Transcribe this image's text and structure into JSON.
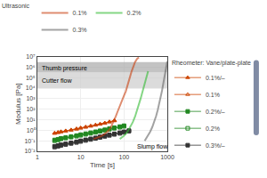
{
  "chart_data": {
    "type": "line",
    "log": true,
    "grid": true,
    "x_label": "Time [s]",
    "y_label": "Modulus [Pa]",
    "xlim": [
      1,
      1000
    ],
    "ylim": [
      0.01,
      10000000
    ],
    "xticks": [
      1,
      10,
      100,
      1000
    ],
    "yticks": [
      {
        "value": 0.01,
        "label": "10⁻²"
      },
      {
        "value": 0.1,
        "label": "10⁻¹"
      },
      {
        "value": 1,
        "label": "10⁰"
      },
      {
        "value": 10,
        "label": "10¹"
      },
      {
        "value": 100,
        "label": "10²"
      },
      {
        "value": 1000,
        "label": "10³"
      },
      {
        "value": 10000,
        "label": "10⁴"
      },
      {
        "value": 100000,
        "label": "10⁵"
      },
      {
        "value": 1000000,
        "label": "10⁶"
      },
      {
        "value": 10000000,
        "label": "10⁷"
      }
    ],
    "bands": [
      {
        "range": [
          300000,
          3000000
        ],
        "color": "#aaaaaa"
      },
      {
        "range": [
          10000,
          300000
        ],
        "color": "#cccccc"
      }
    ],
    "annotations": [
      {
        "text": "Thumb pressure",
        "x": 1.15,
        "y": 800000
      },
      {
        "text": "Cutter flow",
        "x": 1.15,
        "y": 50000
      },
      {
        "text": "Slump flow",
        "x": 180,
        "y": 0.025
      }
    ],
    "series": [
      {
        "name": "0.1%/–",
        "legend_title": "Rheometer: Vane/plate-plate",
        "color": "#cc4400",
        "marker": "triangle-up",
        "line_style": "solid",
        "x": [
          2.5,
          3.0,
          3.5,
          4.5,
          6,
          8,
          10,
          13,
          17,
          22,
          28,
          36,
          46,
          60
        ],
        "values": [
          0.55,
          0.65,
          0.75,
          0.9,
          1.1,
          1.4,
          1.7,
          2.1,
          2.6,
          3.2,
          4.0,
          5.0,
          6.5,
          8.5
        ]
      },
      {
        "name": "0.1%",
        "legend_title": "Rheometer: Vane/plate-plate",
        "color": "#cc4400",
        "marker": "triangle-up-open",
        "line_style": "solid",
        "x": [
          2.5,
          3.0,
          3.5,
          4.5,
          6,
          8,
          10,
          13,
          17,
          22,
          28,
          36,
          46,
          60
        ],
        "values": [
          0.5,
          0.58,
          0.68,
          0.82,
          1.0,
          1.25,
          1.55,
          1.9,
          2.4,
          3.0,
          3.7,
          4.6,
          6.0,
          7.8
        ]
      },
      {
        "name": "0.2%/–",
        "legend_title": "Rheometer: Vane/plate-plate",
        "color": "#228822",
        "marker": "square",
        "line_style": "solid",
        "x": [
          2.5,
          3.0,
          3.5,
          4.5,
          6,
          8,
          10,
          13,
          17,
          22,
          28,
          36,
          46,
          60,
          80,
          100
        ],
        "values": [
          0.12,
          0.14,
          0.17,
          0.2,
          0.25,
          0.31,
          0.38,
          0.47,
          0.58,
          0.72,
          0.9,
          1.1,
          1.4,
          1.75,
          2.2,
          2.7
        ]
      },
      {
        "name": "0.2%",
        "legend_title": "Rheometer: Vane/plate-plate",
        "color": "#228822",
        "marker": "square-open",
        "line_style": "solid",
        "x": [
          2.5,
          3.0,
          3.5,
          4.5,
          6,
          8,
          10,
          13,
          17,
          22,
          28,
          36,
          46,
          60,
          80,
          100
        ],
        "values": [
          0.1,
          0.12,
          0.15,
          0.18,
          0.22,
          0.27,
          0.33,
          0.41,
          0.51,
          0.63,
          0.79,
          0.98,
          1.22,
          1.52,
          1.9,
          2.35
        ]
      },
      {
        "name": "0.3%/–",
        "legend_title": "Rheometer: Vane/plate-plate",
        "color": "#333333",
        "marker": "square",
        "line_style": "solid",
        "x": [
          2.5,
          3.0,
          3.5,
          4.5,
          6,
          8,
          10,
          13,
          17,
          22,
          28,
          36,
          46,
          60,
          80,
          100,
          130
        ],
        "values": [
          0.03,
          0.035,
          0.042,
          0.051,
          0.064,
          0.08,
          0.099,
          0.123,
          0.153,
          0.19,
          0.24,
          0.3,
          0.37,
          0.46,
          0.58,
          0.72,
          0.93
        ]
      },
      {
        "name": "0.3%",
        "legend_title": "Rheometer: Vane/plate-plate",
        "color": "#333333",
        "marker": "square-open",
        "line_style": "solid",
        "x": [
          2.5,
          3.0,
          3.5,
          4.5,
          6,
          8,
          10,
          13,
          17,
          22,
          28,
          36,
          46,
          60,
          80,
          100,
          130
        ],
        "values": [
          0.025,
          0.03,
          0.036,
          0.044,
          0.055,
          0.069,
          0.086,
          0.107,
          0.133,
          0.166,
          0.207,
          0.258,
          0.322,
          0.402,
          0.502,
          0.626,
          0.81
        ]
      },
      {
        "name": "0.1%",
        "legend_title": "Ultrasonic",
        "color": "#c84010",
        "line_style": "solid",
        "x": [
          20,
          25,
          30,
          35,
          40,
          45,
          50,
          55,
          60,
          65,
          70,
          75,
          80,
          85,
          90,
          95,
          100,
          110,
          120,
          130,
          140,
          150,
          160,
          170,
          180,
          200,
          220
        ],
        "values": [
          0.15,
          0.2,
          0.28,
          0.4,
          0.6,
          1.0,
          2.0,
          4.5,
          10,
          22,
          50,
          110,
          230,
          450,
          800,
          1200,
          2000,
          5000,
          15000,
          50000,
          150000,
          400000,
          900000,
          1800000,
          3000000,
          6000000,
          8500000
        ]
      },
      {
        "name": "0.2%",
        "legend_title": "Ultrasonic",
        "color": "#33bb33",
        "line_style": "solid",
        "x": [
          80,
          100,
          120,
          140,
          160,
          180,
          200,
          220,
          240,
          260,
          280,
          300,
          320,
          340,
          360
        ],
        "values": [
          0.15,
          0.3,
          0.7,
          2.0,
          6.0,
          20,
          70,
          250,
          900,
          3000,
          9000,
          25000,
          70000,
          180000,
          400000
        ]
      },
      {
        "name": "0.3%",
        "legend_title": "Ultrasonic",
        "color": "#666666",
        "line_style": "solid",
        "x": [
          300,
          350,
          400,
          450,
          500,
          550,
          600,
          650,
          700,
          750,
          800,
          850,
          900,
          950,
          1000
        ],
        "values": [
          0.1,
          0.25,
          0.7,
          2.0,
          6.5,
          22,
          80,
          300,
          1200,
          5000,
          22000,
          90000,
          350000,
          1200000,
          3500000
        ]
      }
    ]
  }
}
